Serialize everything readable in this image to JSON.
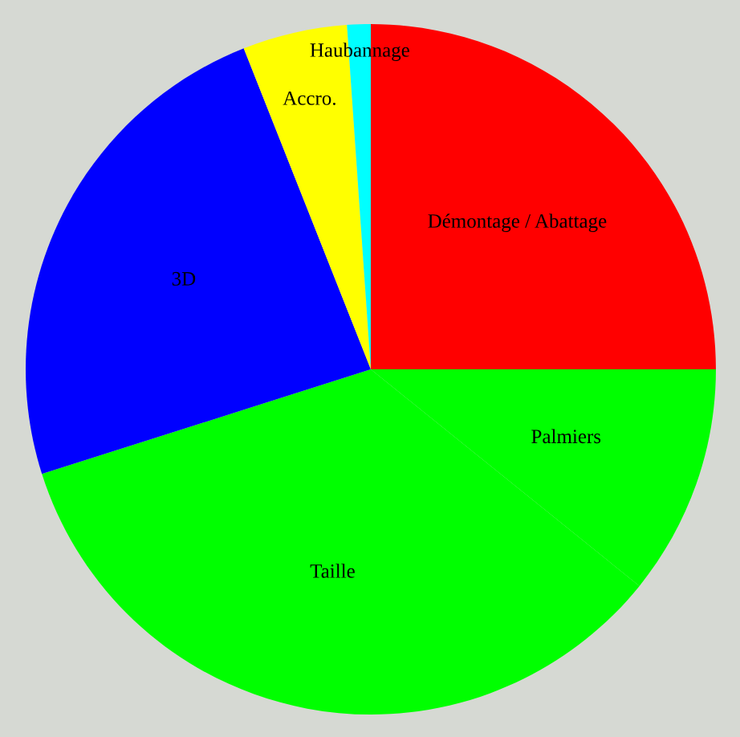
{
  "chart_data": {
    "type": "pie",
    "categories": [
      "Démontage / Abattage",
      "Palmiers",
      "Taille",
      "3D",
      "Accro.",
      "Haubannage"
    ],
    "values": [
      25,
      10.8,
      34.3,
      23.9,
      4.9,
      1.1
    ],
    "colors": [
      "#ff0000",
      "#00ff00",
      "#00ff00",
      "#0000ff",
      "#ffff00",
      "#00ffff"
    ]
  }
}
